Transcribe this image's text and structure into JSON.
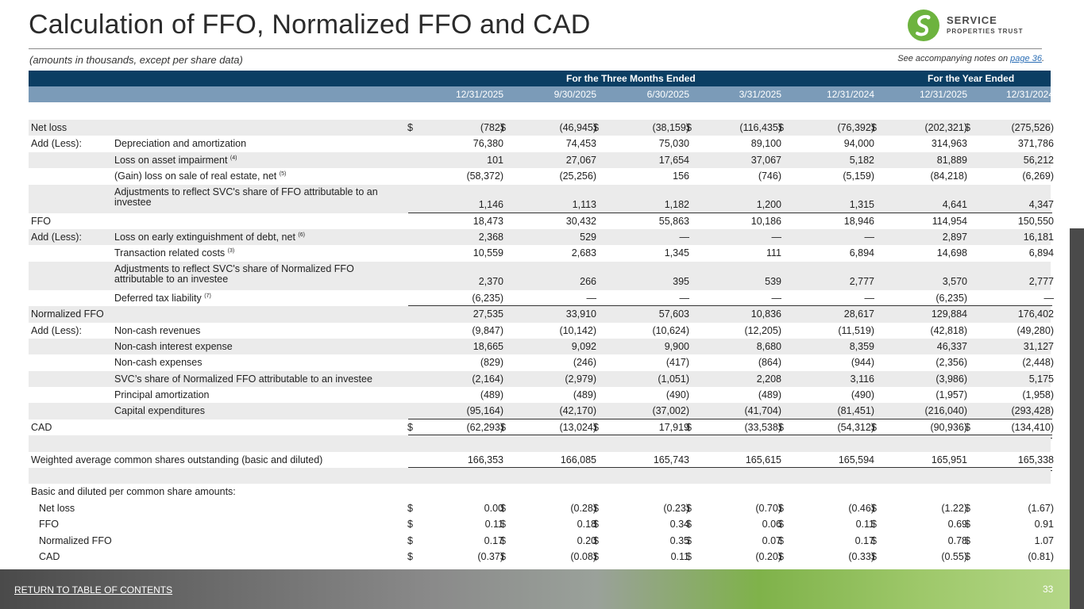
{
  "title": "Calculation of FFO, Normalized FFO and CAD",
  "subtitle": "(amounts in thousands, except per share data)",
  "notes_prefix": "See accompanying notes on ",
  "notes_link": "page 36",
  "notes_suffix": ".",
  "logo": {
    "line1": "SERVICE",
    "line2": "PROPERTIES TRUST",
    "green": "#6db33f"
  },
  "table": {
    "group_headers": [
      "For the Three Months Ended",
      "For the Year Ended"
    ],
    "columns": [
      "12/31/2025",
      "9/30/2025",
      "6/30/2025",
      "3/31/2025",
      "12/31/2024",
      "12/31/2025",
      "12/31/2024"
    ],
    "rows": [
      {
        "label": "Net loss",
        "values": [
          "(782)",
          "(46,945)",
          "(38,159)",
          "(116,435)",
          "(76,392)",
          "(202,321)",
          "(275,526)"
        ]
      },
      {
        "label": "Add (Less):",
        "sub": "Depreciation and amortization",
        "values": [
          "76,380",
          "74,453",
          "75,030",
          "89,100",
          "94,000",
          "314,963",
          "371,786"
        ]
      },
      {
        "sub": "Loss on asset impairment",
        "sup": "(4)",
        "values": [
          "101",
          "27,067",
          "17,654",
          "37,067",
          "5,182",
          "81,889",
          "56,212"
        ]
      },
      {
        "sub": "(Gain) loss on sale of real estate, net",
        "sup": "(5)",
        "values": [
          "(58,372)",
          "(25,256)",
          "156",
          "(746)",
          "(5,159)",
          "(84,218)",
          "(6,269)"
        ]
      },
      {
        "sub": "Adjustments to reflect SVC's share of FFO attributable to an investee",
        "values": [
          "1,146",
          "1,113",
          "1,182",
          "1,200",
          "1,315",
          "4,641",
          "4,347"
        ]
      },
      {
        "label": "FFO",
        "values": [
          "18,473",
          "30,432",
          "55,863",
          "10,186",
          "18,946",
          "114,954",
          "150,550"
        ]
      },
      {
        "label": "Add (Less):",
        "sub": "Loss on early extinguishment of debt, net",
        "sup": "(6)",
        "values": [
          "2,368",
          "529",
          "—",
          "—",
          "—",
          "2,897",
          "16,181"
        ]
      },
      {
        "sub": "Transaction related costs",
        "sup": "(3)",
        "values": [
          "10,559",
          "2,683",
          "1,345",
          "111",
          "6,894",
          "14,698",
          "6,894"
        ]
      },
      {
        "sub": "Adjustments to reflect SVC's share of Normalized FFO attributable to an investee",
        "values": [
          "2,370",
          "266",
          "395",
          "539",
          "2,777",
          "3,570",
          "2,777"
        ]
      },
      {
        "sub": "Deferred tax liability",
        "sup": "(7)",
        "values": [
          "(6,235)",
          "—",
          "—",
          "—",
          "—",
          "(6,235)",
          "—"
        ]
      },
      {
        "label": "Normalized FFO",
        "values": [
          "27,535",
          "33,910",
          "57,603",
          "10,836",
          "28,617",
          "129,884",
          "176,402"
        ]
      },
      {
        "label": "Add (Less):",
        "sub": "Non-cash revenues",
        "values": [
          "(9,847)",
          "(10,142)",
          "(10,624)",
          "(12,205)",
          "(11,519)",
          "(42,818)",
          "(49,280)"
        ]
      },
      {
        "sub": "Non-cash interest expense",
        "values": [
          "18,665",
          "9,092",
          "9,900",
          "8,680",
          "8,359",
          "46,337",
          "31,127"
        ]
      },
      {
        "sub": "Non-cash expenses",
        "values": [
          "(829)",
          "(246)",
          "(417)",
          "(864)",
          "(944)",
          "(2,356)",
          "(2,448)"
        ]
      },
      {
        "sub": "SVC’s share of Normalized FFO attributable to an investee",
        "values": [
          "(2,164)",
          "(2,979)",
          "(1,051)",
          "2,208",
          "3,116",
          "(3,986)",
          "5,175"
        ]
      },
      {
        "sub": "Principal amortization",
        "values": [
          "(489)",
          "(489)",
          "(490)",
          "(489)",
          "(490)",
          "(1,957)",
          "(1,958)"
        ]
      },
      {
        "sub": "Capital expenditures",
        "values": [
          "(95,164)",
          "(42,170)",
          "(37,002)",
          "(41,704)",
          "(81,451)",
          "(216,040)",
          "(293,428)"
        ]
      },
      {
        "label": "CAD",
        "values": [
          "(62,293)",
          "(13,024)",
          "17,919",
          "(33,538)",
          "(54,312)",
          "(90,936)",
          "(134,410)"
        ]
      },
      {
        "label": "Weighted average common shares outstanding (basic and diluted)",
        "values": [
          "166,353",
          "166,085",
          "165,743",
          "165,615",
          "165,594",
          "165,951",
          "165,338"
        ]
      },
      {
        "label": "Basic and diluted per common share amounts:"
      },
      {
        "indent": "Net loss",
        "values": [
          "0.00",
          "(0.28)",
          "(0.23)",
          "(0.70)",
          "(0.46)",
          "(1.22)",
          "(1.67)"
        ]
      },
      {
        "indent": "FFO",
        "values": [
          "0.11",
          "0.18",
          "0.34",
          "0.06",
          "0.11",
          "0.69",
          "0.91"
        ]
      },
      {
        "indent": "Normalized FFO",
        "values": [
          "0.17",
          "0.20",
          "0.35",
          "0.07",
          "0.17",
          "0.78",
          "1.07"
        ]
      },
      {
        "indent": "CAD",
        "values": [
          "(0.37)",
          "(0.08)",
          "0.11",
          "(0.20)",
          "(0.33)",
          "(0.55)",
          "(0.81)"
        ]
      }
    ],
    "currency": "$"
  },
  "footer": {
    "toc": "RETURN TO TABLE OF CONTENTS",
    "page": "33"
  }
}
